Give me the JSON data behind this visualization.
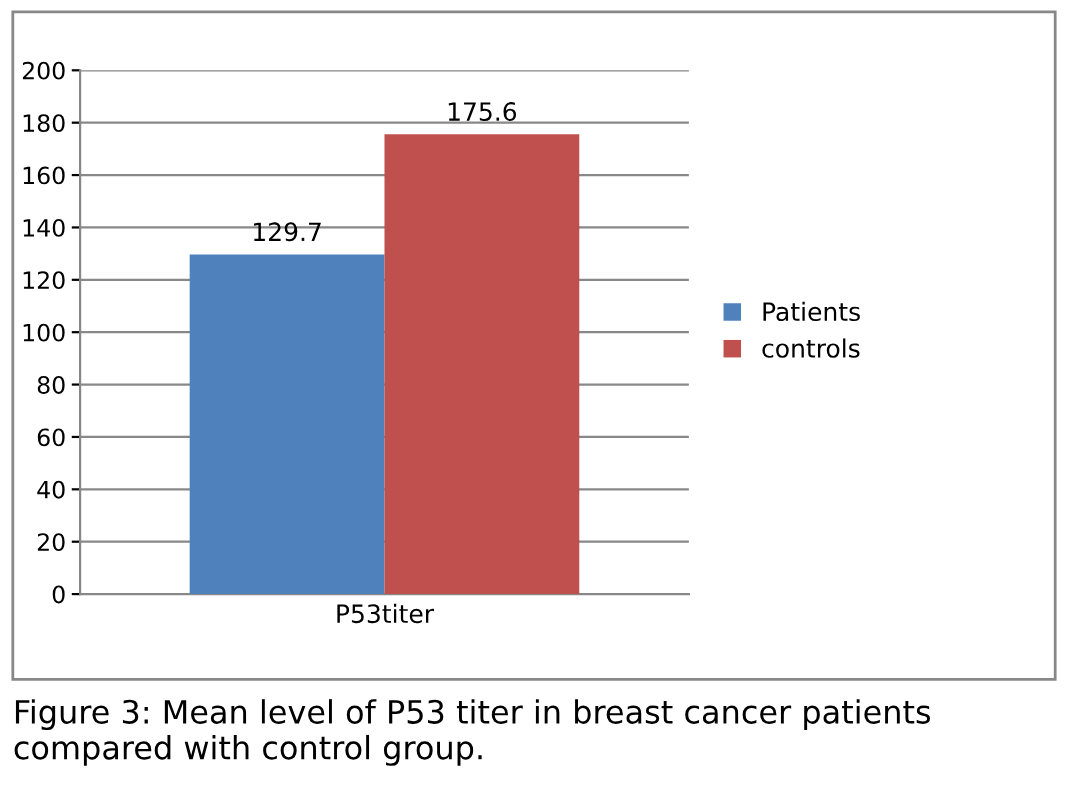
{
  "chart_data": {
    "type": "bar",
    "categories": [
      "P53titer"
    ],
    "series": [
      {
        "name": "Patients",
        "color": "#4f81bd",
        "values": [
          129.7
        ]
      },
      {
        "name": "controls",
        "color": "#c0504d",
        "values": [
          175.6
        ]
      }
    ],
    "ylim": [
      0,
      200
    ],
    "yticks": [
      0,
      20,
      40,
      60,
      80,
      100,
      120,
      140,
      160,
      180,
      200
    ],
    "grid": "y",
    "legend": "right",
    "data_labels": true,
    "annotations": [
      "Figure 3: Mean level of P53 titer in breast cancer patients compared with control group."
    ]
  }
}
